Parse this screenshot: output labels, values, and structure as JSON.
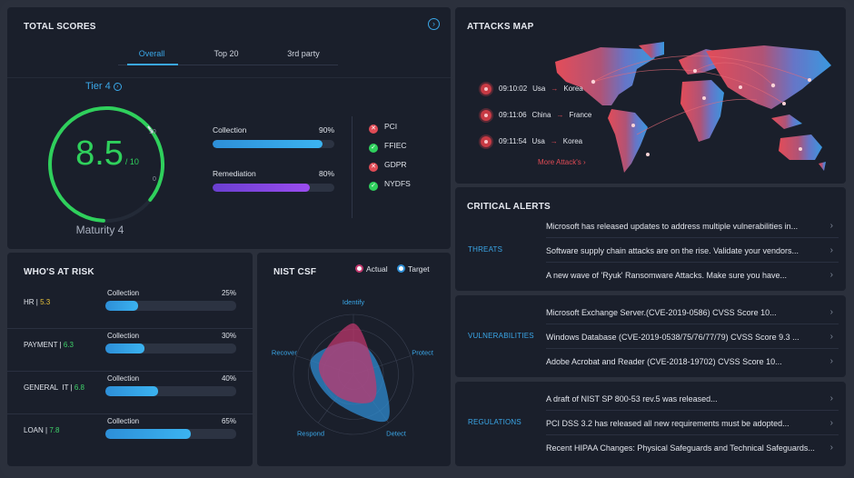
{
  "total_scores": {
    "title": "TOTAL SCORES",
    "tabs": [
      "Overall",
      "Top 20",
      "3rd party"
    ],
    "active_tab": 0,
    "tier": "Tier 4",
    "score": "8.5",
    "score_max": "/ 10",
    "gauge_fraction": 0.85,
    "gauge_tick_top": "10",
    "gauge_tick_bottom": "0",
    "maturity": "Maturity 4",
    "bars": [
      {
        "label": "Collection",
        "value": "90%",
        "fraction": 0.9,
        "color": "blue"
      },
      {
        "label": "Remediation",
        "value": "80%",
        "fraction": 0.8,
        "color": "purple"
      }
    ],
    "compliance": [
      {
        "label": "PCI",
        "status": "fail"
      },
      {
        "label": "FFIEC",
        "status": "pass"
      },
      {
        "label": "GDPR",
        "status": "fail"
      },
      {
        "label": "NYDFS",
        "status": "pass"
      }
    ]
  },
  "attacks_map": {
    "title": "ATTACKS MAP",
    "attacks": [
      {
        "time": "09:10:02",
        "from": "Usa",
        "to": "Korea"
      },
      {
        "time": "09:11:06",
        "from": "China",
        "to": "France"
      },
      {
        "time": "09:11:54",
        "from": "Usa",
        "to": "Korea"
      }
    ],
    "more_link": "More Attack's"
  },
  "who_at_risk": {
    "title": "WHO'S AT RISK",
    "rows": [
      {
        "name": "HR",
        "score": "5.3",
        "score_color": "#e8c23a",
        "bar_label": "Collection",
        "pct": "25%",
        "fraction": 0.25
      },
      {
        "name": "PAYMENT",
        "score": "6.3",
        "score_color": "#3fd46a",
        "bar_label": "Collection",
        "pct": "30%",
        "fraction": 0.3
      },
      {
        "name": "GENERAL  IT",
        "score": "6.8",
        "score_color": "#3fd46a",
        "bar_label": "Collection",
        "pct": "40%",
        "fraction": 0.4
      },
      {
        "name": "LOAN",
        "score": "7.8",
        "score_color": "#3fd46a",
        "bar_label": "Collection",
        "pct": "65%",
        "fraction": 0.65
      }
    ]
  },
  "nist": {
    "title": "NIST CSF",
    "legend_actual": "Actual",
    "legend_target": "Target",
    "axes": [
      "Identify",
      "Protect",
      "Detect",
      "Respond",
      "Recover"
    ],
    "actual": [
      0.85,
      0.35,
      0.55,
      0.45,
      0.6
    ],
    "target": [
      0.55,
      0.45,
      0.95,
      0.55,
      0.75
    ]
  },
  "critical_alerts": {
    "title": "CRITICAL ALERTS",
    "groups": [
      {
        "category": "THREATS",
        "items": [
          "Microsoft has released updates to address multiple vulnerabilities in...",
          "Software supply chain attacks are on the rise. Validate your vendors...",
          "A new wave of 'Ryuk' Ransomware Attacks. Make sure you have..."
        ]
      },
      {
        "category": "VULNERABILITIES",
        "items": [
          "Microsoft Exchange Server.(CVE-2019-0586) CVSS Score 10...",
          "Windows Database (CVE-2019-0538/75/76/77/79) CVSS Score 9.3 ...",
          "Adobe Acrobat and Reader (CVE-2018-19702) CVSS Score 10..."
        ]
      },
      {
        "category": "REGULATIONS",
        "items": [
          "A draft of NIST SP 800-53 rev.5 was released...",
          "PCI DSS 3.2 has released all new requirements must be adopted...",
          "Recent HIPAA Changes: Physical Safeguards and Technical Safeguards..."
        ]
      }
    ]
  },
  "colors": {
    "accent": "#3aa7e8",
    "gauge_green": "#2fd05c",
    "danger": "#e04b55",
    "actual_fill": "#c2386e",
    "target_fill": "#2f8fd6"
  }
}
